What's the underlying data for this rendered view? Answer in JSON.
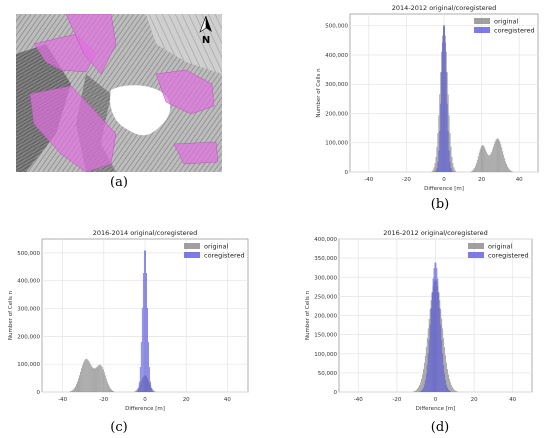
{
  "panel_labels": {
    "a": "(a)",
    "b": "(b)",
    "c": "(c)",
    "d": "(d)"
  },
  "map": {
    "north_label": "N",
    "highlight_color": "#e070e0"
  },
  "colors": {
    "original": "#808080",
    "coregistered": "#5050d8",
    "overlap": "#3a3a78"
  },
  "chart_data": [
    {
      "id": "b",
      "type": "bar",
      "title": "2014-2012 original/coregistered",
      "xlabel": "Difference [m]",
      "ylabel": "Number of Cells n",
      "xlim": [
        -50,
        50
      ],
      "ylim": [
        0,
        540000
      ],
      "xticks": [
        -40,
        -20,
        0,
        20,
        40
      ],
      "yticks": [
        0,
        100000,
        200000,
        300000,
        400000,
        500000
      ],
      "ytick_labels": [
        "0",
        "100,000",
        "200,000",
        "300,000",
        "400,000",
        "500,000"
      ],
      "legend": [
        "original",
        "coregistered"
      ],
      "legend_position": "top-right",
      "grid": true,
      "series": [
        {
          "name": "original",
          "components": [
            {
              "center": 0,
              "sigma": 2,
              "peak": 500000
            },
            {
              "center": 20.5,
              "sigma": 2.2,
              "peak": 90000
            },
            {
              "center": 28.5,
              "sigma": 2.8,
              "peak": 115000
            }
          ]
        },
        {
          "name": "coregistered",
          "components": [
            {
              "center": 0,
              "sigma": 1.4,
              "peak": 510000
            }
          ]
        }
      ]
    },
    {
      "id": "c",
      "type": "bar",
      "title": "2016-2014 original/coregistered",
      "xlabel": "Difference [m]",
      "ylabel": "Number of Cells n",
      "xlim": [
        -50,
        50
      ],
      "ylim": [
        0,
        550000
      ],
      "xticks": [
        -40,
        -20,
        0,
        20,
        40
      ],
      "yticks": [
        0,
        100000,
        200000,
        300000,
        400000,
        500000
      ],
      "ytick_labels": [
        "0",
        "100,000",
        "200,000",
        "300,000",
        "400,000",
        "500,000"
      ],
      "legend": [
        "original",
        "coregistered"
      ],
      "legend_position": "top-right",
      "grid": true,
      "series": [
        {
          "name": "original",
          "components": [
            {
              "center": -28.5,
              "sigma": 2.8,
              "peak": 118000
            },
            {
              "center": -21.5,
              "sigma": 2.4,
              "peak": 92000
            },
            {
              "center": 0,
              "sigma": 2,
              "peak": 60000
            }
          ]
        },
        {
          "name": "coregistered",
          "components": [
            {
              "center": 0,
              "sigma": 1.2,
              "peak": 520000
            }
          ]
        }
      ]
    },
    {
      "id": "d",
      "type": "bar",
      "title": "2016-2012 original/coregistered",
      "xlabel": "Difference [m]",
      "ylabel": "Number of Cells n",
      "xlim": [
        -50,
        50
      ],
      "ylim": [
        0,
        400000
      ],
      "xticks": [
        -40,
        -20,
        0,
        20,
        40
      ],
      "yticks": [
        0,
        50000,
        100000,
        150000,
        200000,
        250000,
        300000,
        350000,
        400000
      ],
      "ytick_labels": [
        "0",
        "50,000",
        "100,000",
        "150,000",
        "200,000",
        "250,000",
        "300,000",
        "350,000",
        "400,000"
      ],
      "legend": [
        "original",
        "coregistered"
      ],
      "legend_position": "top-right",
      "grid": true,
      "series": [
        {
          "name": "original",
          "components": [
            {
              "center": 0,
              "sigma": 3.5,
              "peak": 295000
            }
          ]
        },
        {
          "name": "coregistered",
          "components": [
            {
              "center": 0,
              "sigma": 2.4,
              "peak": 340000
            }
          ]
        }
      ]
    }
  ]
}
